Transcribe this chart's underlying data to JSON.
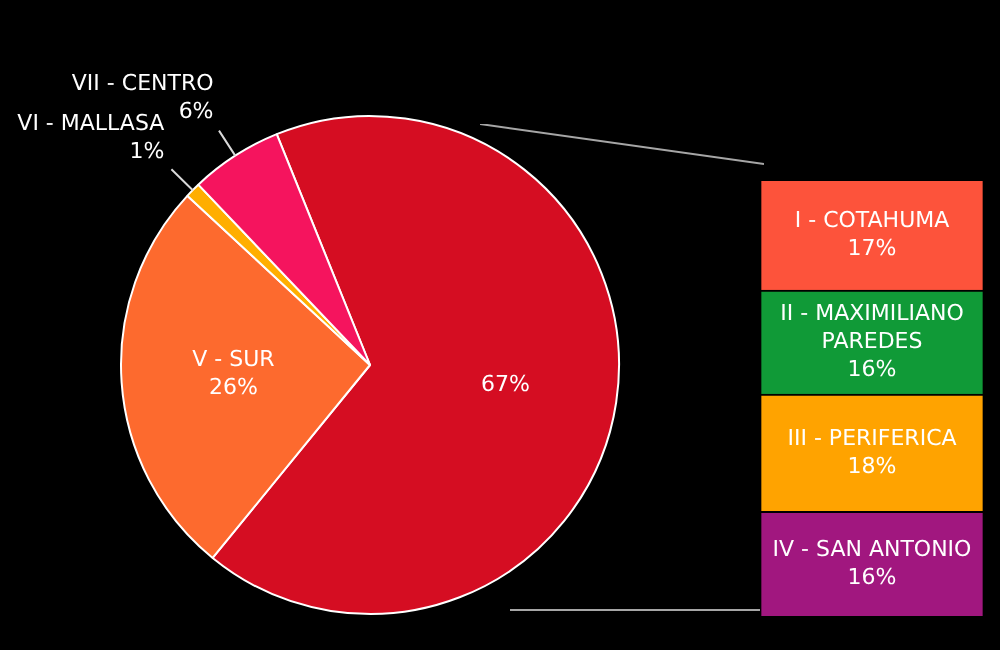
{
  "chart_data": [
    {
      "type": "pie",
      "categories": [
        null,
        "V - SUR",
        "VI - MALLASA",
        "VII - CENTRO"
      ],
      "values": [
        67,
        26,
        1,
        6
      ],
      "colors": [
        "#d50d22",
        "#fd6a2e",
        "#ffae00",
        "#f5145e"
      ],
      "value_labels": [
        "67%",
        "26%",
        "1%",
        "6%"
      ],
      "legend": false
    },
    {
      "type": "bar",
      "stacked": true,
      "categories": [
        null
      ],
      "series": [
        {
          "name": "IV - SAN ANTONIO",
          "color": "#a1177f",
          "values": [
            16
          ],
          "value_labels": [
            "16%"
          ]
        },
        {
          "name": "III - PERIFERICA",
          "color": "#ffa300",
          "values": [
            18
          ],
          "value_labels": [
            "18%"
          ]
        },
        {
          "name": "II - MAXIMILIANO PAREDES",
          "color": "#109a37",
          "values": [
            16
          ],
          "value_labels": [
            "16%"
          ]
        },
        {
          "name": "I - COTAHUMA",
          "color": "#fd533b",
          "values": [
            17
          ],
          "value_labels": [
            "17%"
          ]
        }
      ],
      "data_labels": true,
      "tick_labels": false,
      "legend": false
    }
  ]
}
